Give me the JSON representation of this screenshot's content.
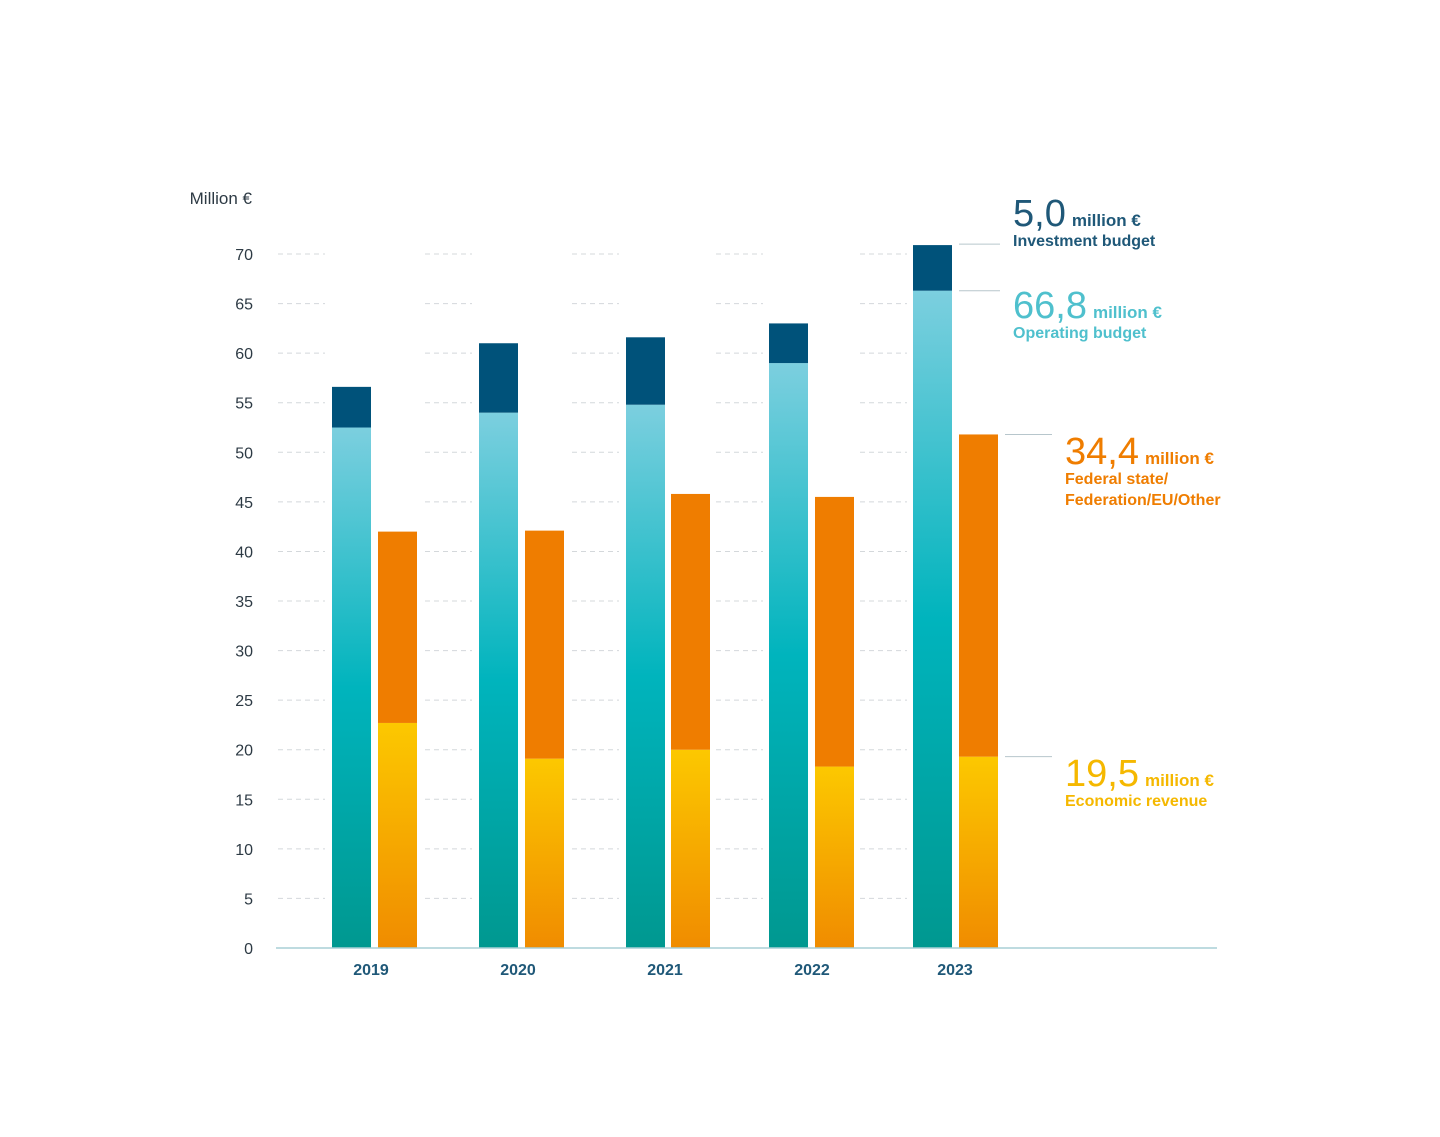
{
  "chart_data": {
    "type": "bar",
    "stacked": true,
    "ylabel": "Million €",
    "ylim": [
      0,
      70
    ],
    "yticks": [
      0,
      5,
      10,
      15,
      20,
      25,
      30,
      35,
      40,
      45,
      50,
      55,
      60,
      65,
      70
    ],
    "categories": [
      "2019",
      "2020",
      "2021",
      "2022",
      "2023"
    ],
    "grid": true,
    "series": [
      {
        "name": "Operating budget",
        "stack": "expenditure",
        "color": "#00b4bd",
        "values": [
          52.5,
          54.0,
          54.8,
          59.0,
          66.3
        ]
      },
      {
        "name": "Investment budget",
        "stack": "expenditure",
        "color": "#00527a",
        "values": [
          4.1,
          7.0,
          6.8,
          4.0,
          4.6
        ]
      },
      {
        "name": "Economic revenue",
        "stack": "revenue",
        "color": "#fcc200",
        "values": [
          22.7,
          19.1,
          20.0,
          18.3,
          19.3
        ]
      },
      {
        "name": "Federal state/ Federation/EU/Other",
        "stack": "revenue",
        "color": "#ef7d00",
        "values": [
          19.3,
          23.0,
          25.8,
          27.2,
          32.5
        ]
      }
    ]
  },
  "annotations": [
    {
      "value": "5,0",
      "unit": "million €",
      "lines": [
        "Investment budget"
      ],
      "color": "#1f5878"
    },
    {
      "value": "66,8",
      "unit": "million €",
      "lines": [
        "Operating budget"
      ],
      "color": "#4fc0cd"
    },
    {
      "value": "34,4",
      "unit": "million €",
      "lines": [
        "Federal state/",
        "Federation/EU/Other"
      ],
      "color": "#ef7d00"
    },
    {
      "value": "19,5",
      "unit": "million €",
      "lines": [
        "Economic revenue"
      ],
      "color": "#f5b800"
    }
  ]
}
